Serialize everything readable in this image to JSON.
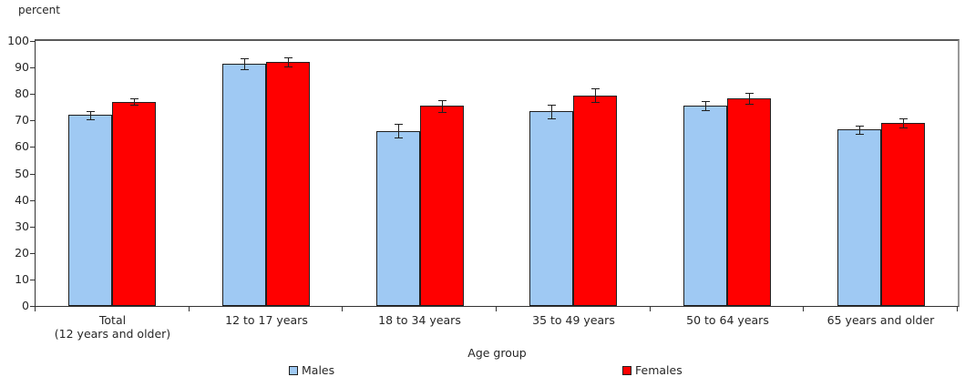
{
  "chart_data": {
    "type": "bar",
    "title": "",
    "ylabel": "percent",
    "xlabel": "Age group",
    "ylim": [
      0,
      100
    ],
    "yticks": [
      0,
      10,
      20,
      30,
      40,
      50,
      60,
      70,
      80,
      90,
      100
    ],
    "grid": false,
    "legend_position": "bottom",
    "error_bars": true,
    "categories": [
      "Total\n(12 years and older)",
      "12 to 17 years",
      "18 to 34 years",
      "35 to 49 years",
      "50 to 64 years",
      "65 years and older"
    ],
    "series": [
      {
        "name": "Males",
        "color": "#9FC9F3",
        "border_color": "#1f1f1f",
        "values": [
          72,
          91.5,
          66,
          73.5,
          75.5,
          66.5
        ],
        "errors": [
          1.5,
          2.0,
          2.6,
          2.5,
          1.8,
          1.5
        ]
      },
      {
        "name": "Females",
        "color": "#FF0000",
        "border_color": "#1f1f1f",
        "values": [
          77,
          92,
          75.5,
          79.5,
          78.5,
          69
        ],
        "errors": [
          1.2,
          1.8,
          2.3,
          2.5,
          2.0,
          1.8
        ]
      }
    ]
  },
  "colors": {
    "axis_line": "#333333",
    "plot_border_top": "#595959",
    "text": "#262626",
    "background": "#ffffff"
  }
}
